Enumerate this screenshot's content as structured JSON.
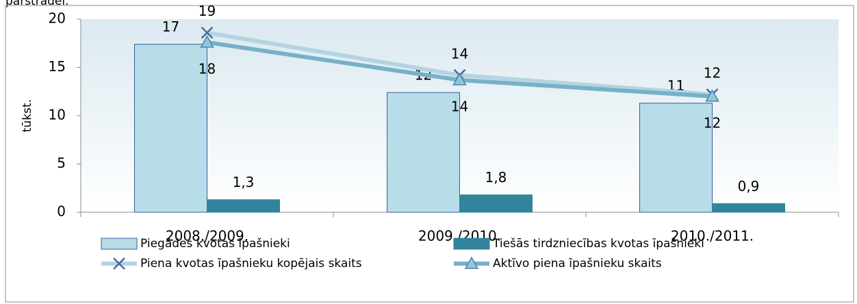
{
  "heading": "pārstrādei.",
  "chart_data": {
    "type": "bar",
    "ylabel": "tūkst.",
    "categories": [
      "2008./2009.",
      "2009./2010.",
      "2010./2011."
    ],
    "ylim": [
      0,
      20
    ],
    "yticks": [
      0,
      5,
      10,
      15,
      20
    ],
    "grid": false,
    "legend": "bottom",
    "series": [
      {
        "name": "Piegādes kvotas īpašnieki",
        "type": "bar",
        "color": "#b7dde8",
        "values": [
          17.4,
          12.4,
          11.3
        ],
        "value_labels": [
          "17",
          "12",
          "11"
        ]
      },
      {
        "name": "Tiešās tirdzniecības kvotas īpašnieki",
        "type": "bar",
        "color": "#31849b",
        "values": [
          1.3,
          1.8,
          0.9
        ],
        "value_labels": [
          "1,3",
          "1,8",
          "0,9"
        ]
      },
      {
        "name": "Piena kvotas īpašnieku kopējais skaits",
        "type": "line",
        "marker": "x",
        "color": "#b3d4e0",
        "values": [
          18.6,
          14.2,
          12.2
        ],
        "value_labels": [
          "19",
          "14",
          "12"
        ]
      },
      {
        "name": "Aktīvo piena īpašnieku skaits",
        "type": "line",
        "marker": "triangle",
        "color": "#76b1c9",
        "values": [
          17.6,
          13.7,
          12.0
        ],
        "value_labels": [
          "18",
          "14",
          "12"
        ]
      }
    ]
  }
}
